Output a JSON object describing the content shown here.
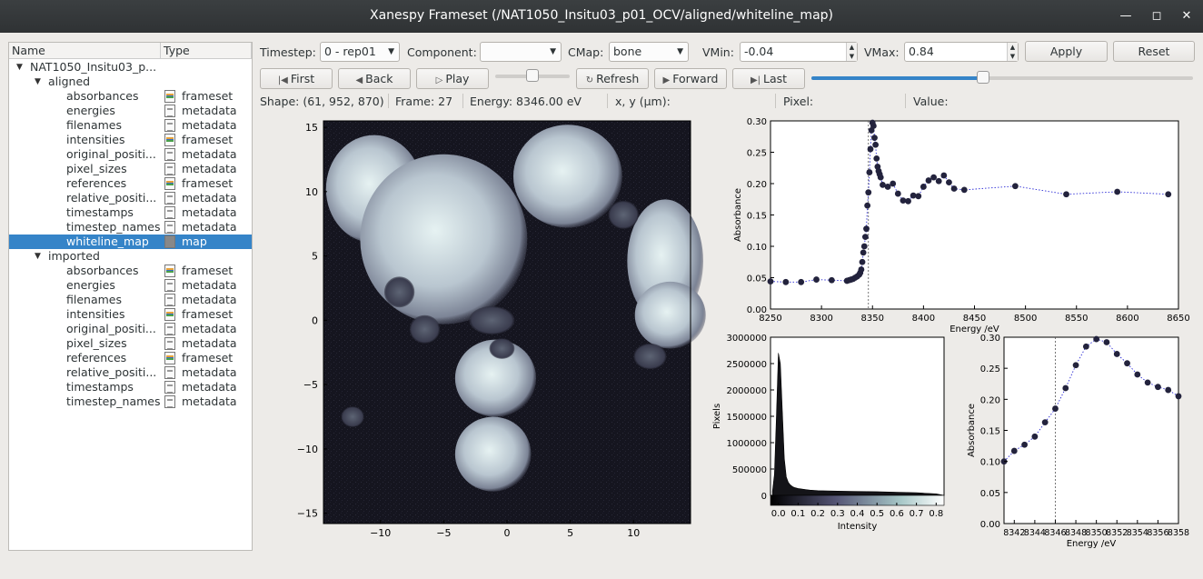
{
  "window": {
    "title": "Xanespy Frameset (/NAT1050_Insitu03_p01_OCV/aligned/whiteline_map)"
  },
  "tree": {
    "col_name": "Name",
    "col_type": "Type",
    "root": "NAT1050_Insitu03_p...",
    "groups": [
      {
        "name": "aligned",
        "items": [
          {
            "name": "absorbances",
            "type": "frameset"
          },
          {
            "name": "energies",
            "type": "metadata"
          },
          {
            "name": "filenames",
            "type": "metadata"
          },
          {
            "name": "intensities",
            "type": "frameset"
          },
          {
            "name": "original_positi...",
            "type": "metadata"
          },
          {
            "name": "pixel_sizes",
            "type": "metadata"
          },
          {
            "name": "references",
            "type": "frameset"
          },
          {
            "name": "relative_positi...",
            "type": "metadata"
          },
          {
            "name": "timestamps",
            "type": "metadata"
          },
          {
            "name": "timestep_names",
            "type": "metadata"
          },
          {
            "name": "whiteline_map",
            "type": "map",
            "selected": true
          }
        ]
      },
      {
        "name": "imported",
        "items": [
          {
            "name": "absorbances",
            "type": "frameset"
          },
          {
            "name": "energies",
            "type": "metadata"
          },
          {
            "name": "filenames",
            "type": "metadata"
          },
          {
            "name": "intensities",
            "type": "frameset"
          },
          {
            "name": "original_positi...",
            "type": "metadata"
          },
          {
            "name": "pixel_sizes",
            "type": "metadata"
          },
          {
            "name": "references",
            "type": "frameset"
          },
          {
            "name": "relative_positi...",
            "type": "metadata"
          },
          {
            "name": "timestamps",
            "type": "metadata"
          },
          {
            "name": "timestep_names",
            "type": "metadata"
          }
        ]
      }
    ]
  },
  "toolbar": {
    "timestep_label": "Timestep:",
    "timestep_value": "0 - rep01",
    "component_label": "Component:",
    "component_value": "",
    "cmap_label": "CMap:",
    "cmap_value": "bone",
    "vmin_label": "VMin:",
    "vmin_value": "-0.04",
    "vmax_label": "VMax:",
    "vmax_value": "0.84",
    "apply": "Apply",
    "reset": "Reset",
    "first": "First",
    "back": "Back",
    "play": "Play",
    "refresh": "Refresh",
    "forward": "Forward",
    "last": "Last",
    "speed_level": 0.5,
    "frame_level": 0.45
  },
  "status": {
    "shape": "Shape:  (61, 952, 870)",
    "frame": "Frame:  27",
    "energy": "Energy:  8346.00 eV",
    "xy": "x, y  (µm):",
    "pixel": "Pixel:",
    "value": "Value:"
  },
  "chart_data": [
    {
      "type": "heatmap",
      "name": "map",
      "xlim": [
        -14.5,
        14.5
      ],
      "ylim": [
        -15.8,
        15.5
      ],
      "xticks": [
        "−10",
        "−5",
        "0",
        "5",
        "10"
      ],
      "xtickvals": [
        -10,
        -5,
        0,
        5,
        10
      ],
      "yticks": [
        "15",
        "10",
        "5",
        "0",
        "−5",
        "−10",
        "−15"
      ],
      "ytickvals": [
        15,
        10,
        5,
        0,
        -5,
        -10,
        -15
      ],
      "cmap": "bone"
    },
    {
      "type": "scatter",
      "name": "spectrum",
      "xlabel": "Energy /eV",
      "ylabel": "Absorbance",
      "xlim": [
        8250,
        8650
      ],
      "ylim": [
        0.0,
        0.3
      ],
      "xticks": [
        "8250",
        "8300",
        "8350",
        "8400",
        "8450",
        "8500",
        "8550",
        "8600",
        "8650"
      ],
      "yticks": [
        "0.00",
        "0.05",
        "0.10",
        "0.15",
        "0.20",
        "0.25",
        "0.30"
      ],
      "marker_x": 8346,
      "x": [
        8250,
        8265,
        8280,
        8295,
        8310,
        8325,
        8327,
        8329,
        8331,
        8333,
        8335,
        8337,
        8338,
        8339,
        8340,
        8341,
        8342,
        8343,
        8344,
        8345,
        8346,
        8347,
        8348,
        8349,
        8350,
        8351,
        8352,
        8353,
        8354,
        8355,
        8356,
        8357,
        8358,
        8360,
        8365,
        8370,
        8375,
        8380,
        8385,
        8390,
        8395,
        8400,
        8405,
        8410,
        8415,
        8420,
        8425,
        8430,
        8440,
        8490,
        8540,
        8590,
        8640
      ],
      "y": [
        0.044,
        0.043,
        0.043,
        0.047,
        0.046,
        0.045,
        0.046,
        0.047,
        0.048,
        0.05,
        0.052,
        0.055,
        0.058,
        0.063,
        0.075,
        0.09,
        0.1,
        0.115,
        0.128,
        0.165,
        0.186,
        0.218,
        0.255,
        0.285,
        0.297,
        0.292,
        0.273,
        0.262,
        0.24,
        0.227,
        0.22,
        0.215,
        0.21,
        0.198,
        0.195,
        0.2,
        0.184,
        0.173,
        0.172,
        0.181,
        0.18,
        0.195,
        0.205,
        0.21,
        0.204,
        0.213,
        0.202,
        0.192,
        0.19,
        0.196,
        0.183,
        0.187,
        0.183
      ]
    },
    {
      "type": "bar",
      "name": "histogram",
      "xlabel": "Intensity",
      "ylabel": "Pixels",
      "xlim": [
        -0.04,
        0.84
      ],
      "ylim": [
        0,
        3000000
      ],
      "xticks": [
        "0.0",
        "0.1",
        "0.2",
        "0.3",
        "0.4",
        "0.5",
        "0.6",
        "0.7",
        "0.8"
      ],
      "yticks": [
        "0",
        "500000",
        "1000000",
        "1500000",
        "2000000",
        "2500000",
        "3000000"
      ],
      "bins": [
        -0.03,
        -0.02,
        -0.01,
        0.0,
        0.01,
        0.02,
        0.03,
        0.04,
        0.05,
        0.06,
        0.07,
        0.08,
        0.1,
        0.12,
        0.14,
        0.16,
        0.2,
        0.25,
        0.3,
        0.4,
        0.5,
        0.6,
        0.7,
        0.8
      ],
      "values": [
        80000,
        400000,
        1500000,
        2700000,
        2500000,
        1600000,
        700000,
        350000,
        250000,
        200000,
        170000,
        150000,
        130000,
        120000,
        110000,
        100000,
        90000,
        85000,
        80000,
        75000,
        70000,
        60000,
        50000,
        30000
      ]
    },
    {
      "type": "scatter",
      "name": "spectrum_zoom",
      "xlabel": "Energy /eV",
      "ylabel": "Absorbance",
      "xlim": [
        8341,
        8358
      ],
      "ylim": [
        0.0,
        0.3
      ],
      "xticks": [
        "8342",
        "8344",
        "8346",
        "8348",
        "8350",
        "8352",
        "8354",
        "8356",
        "8358"
      ],
      "yticks": [
        "0.00",
        "0.05",
        "0.10",
        "0.15",
        "0.20",
        "0.25",
        "0.30"
      ],
      "marker_x": 8346,
      "x": [
        8341,
        8342,
        8343,
        8344,
        8345,
        8346,
        8347,
        8348,
        8349,
        8350,
        8351,
        8352,
        8353,
        8354,
        8355,
        8356,
        8357,
        8358
      ],
      "y": [
        0.1,
        0.117,
        0.127,
        0.14,
        0.163,
        0.185,
        0.218,
        0.255,
        0.285,
        0.297,
        0.292,
        0.273,
        0.258,
        0.24,
        0.227,
        0.22,
        0.215,
        0.205
      ]
    }
  ]
}
